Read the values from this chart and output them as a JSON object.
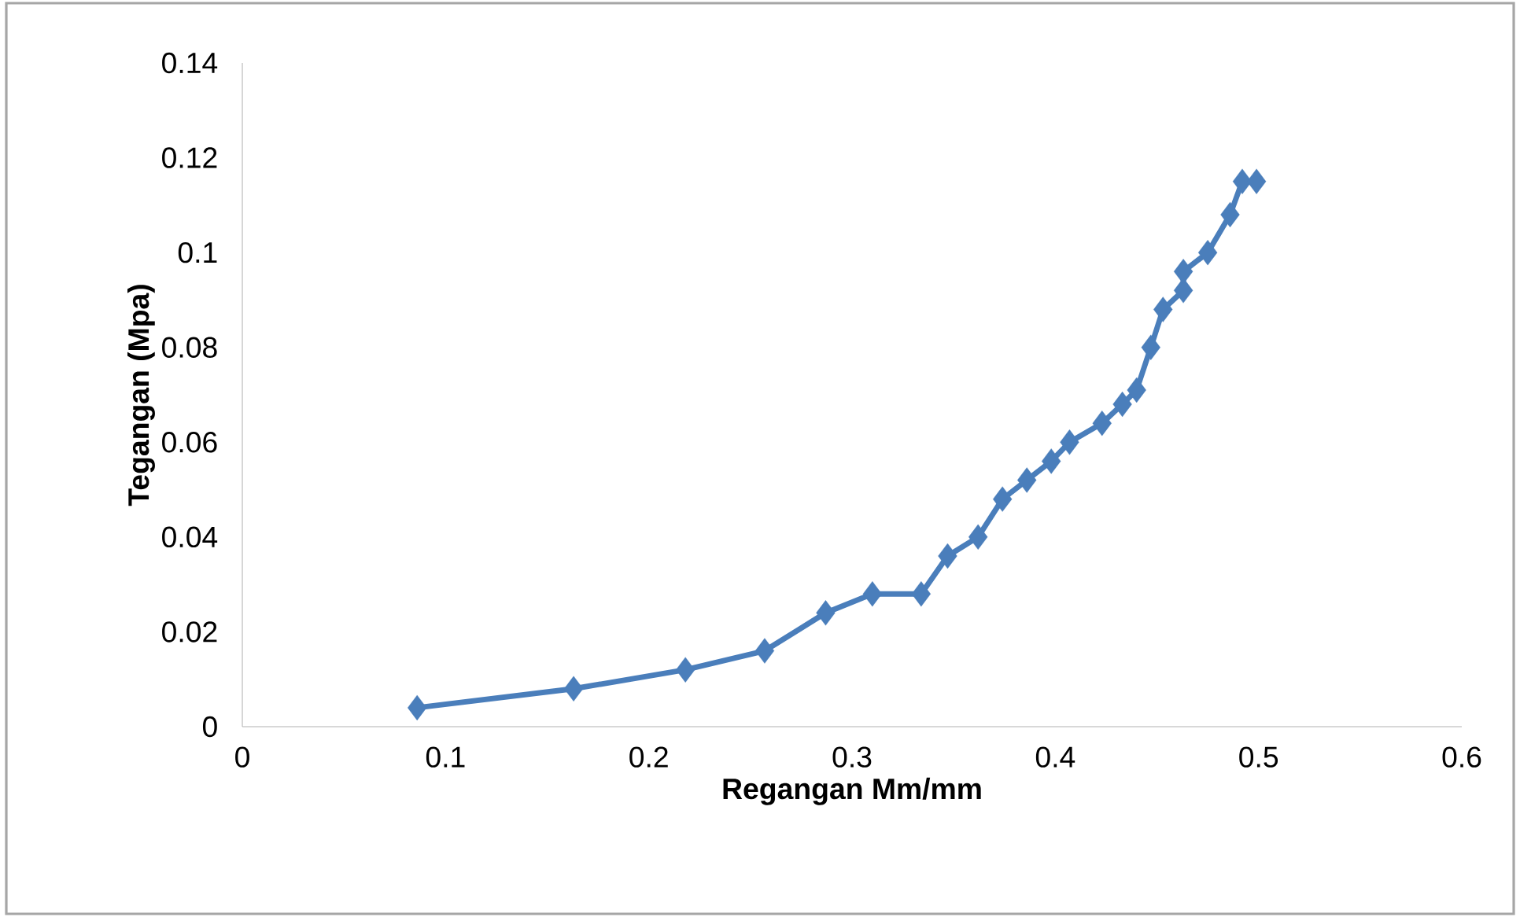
{
  "chart_data": {
    "type": "line",
    "xlabel": "Regangan Mm/mm",
    "ylabel": "Tegangan (Mpa)",
    "x": [
      0.086,
      0.163,
      0.218,
      0.257,
      0.287,
      0.31,
      0.334,
      0.347,
      0.362,
      0.374,
      0.386,
      0.398,
      0.407,
      0.423,
      0.433,
      0.44,
      0.447,
      0.453,
      0.463,
      0.463,
      0.475,
      0.486,
      0.492,
      0.499
    ],
    "values": [
      0.004,
      0.008,
      0.012,
      0.016,
      0.024,
      0.028,
      0.028,
      0.036,
      0.04,
      0.048,
      0.052,
      0.056,
      0.06,
      0.064,
      0.068,
      0.071,
      0.08,
      0.088,
      0.092,
      0.096,
      0.1,
      0.108,
      0.115,
      0.115
    ],
    "color": "#4a7ebb",
    "marker": "diamond",
    "line_style": "solid",
    "xlim": [
      0,
      0.6
    ],
    "ylim": [
      0,
      0.14
    ],
    "xticks": [
      0,
      0.1,
      0.2,
      0.3,
      0.4,
      0.5,
      0.6
    ],
    "yticks": [
      0,
      0.02,
      0.04,
      0.06,
      0.08,
      0.1,
      0.12,
      0.14
    ]
  }
}
